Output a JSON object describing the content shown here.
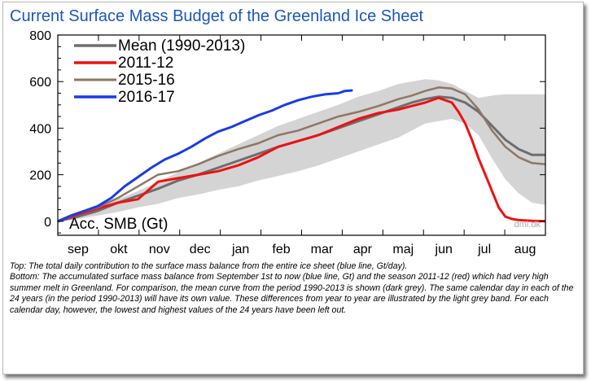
{
  "header": {
    "title": "Current Surface Mass Budget of the Greenland Ice Sheet"
  },
  "caption": {
    "top": "Top: The total daily contribution to the surface mass balance from the entire ice sheet (blue line, Gt/day).",
    "bottom": "Bottom: The accumulated surface mass balance from September 1st to now (blue line, Gt) and the season 2011-12 (red) which had very high summer melt in Greenland. For comparison, the mean curve from the period 1990-2013 is shown (dark grey). The same calendar day in each of the 24 years (in the period 1990-2013) will have its own value. These differences from year to year are illustrated by the light grey band. For each calendar day, however, the lowest and highest values of the 24 years have been left out."
  },
  "chart_data": {
    "type": "line",
    "ylabel": "Acc. SMB (Gt)",
    "source": "dmi.dk",
    "ylim": [
      -60,
      800
    ],
    "xlim": [
      0,
      365
    ],
    "yticks": [
      0,
      200,
      400,
      600,
      800
    ],
    "months": [
      "sep",
      "okt",
      "nov",
      "dec",
      "jan",
      "feb",
      "mar",
      "apr",
      "maj",
      "jun",
      "jul",
      "aug"
    ],
    "legend_position": "top-left",
    "grid": false,
    "band": {
      "color": "#d4d4d4",
      "x": [
        0,
        15,
        30,
        45,
        60,
        75,
        90,
        105,
        120,
        135,
        150,
        165,
        180,
        195,
        210,
        225,
        240,
        255,
        265,
        275,
        285,
        295,
        305,
        315,
        325,
        335,
        345,
        355,
        365
      ],
      "lower": [
        0,
        10,
        25,
        40,
        60,
        75,
        100,
        115,
        135,
        150,
        175,
        195,
        215,
        240,
        270,
        300,
        330,
        360,
        390,
        420,
        430,
        440,
        420,
        370,
        270,
        180,
        120,
        80,
        70
      ],
      "upper": [
        0,
        25,
        60,
        95,
        130,
        170,
        210,
        250,
        290,
        330,
        370,
        410,
        440,
        470,
        500,
        535,
        560,
        590,
        600,
        610,
        605,
        590,
        560,
        530,
        540,
        545,
        545,
        545,
        545
      ]
    },
    "series": [
      {
        "name": "Mean (1990-2013)",
        "color": "#6e6e6e",
        "width": 3,
        "x": [
          0,
          15,
          30,
          45,
          60,
          75,
          90,
          105,
          120,
          135,
          150,
          165,
          180,
          195,
          210,
          225,
          240,
          255,
          265,
          275,
          285,
          295,
          305,
          315,
          325,
          335,
          345,
          355,
          365
        ],
        "values": [
          0,
          20,
          45,
          80,
          110,
          140,
          175,
          200,
          230,
          260,
          290,
          320,
          345,
          370,
          400,
          430,
          460,
          490,
          510,
          525,
          535,
          530,
          510,
          470,
          410,
          350,
          310,
          285,
          285
        ]
      },
      {
        "name": "2011-12",
        "color": "#ee1111",
        "width": 3,
        "x": [
          0,
          15,
          30,
          45,
          60,
          75,
          90,
          105,
          120,
          135,
          150,
          165,
          180,
          195,
          210,
          225,
          240,
          255,
          265,
          275,
          285,
          295,
          300,
          305,
          310,
          315,
          320,
          325,
          330,
          335,
          340,
          345,
          355,
          365
        ],
        "values": [
          0,
          30,
          55,
          80,
          95,
          170,
          185,
          200,
          215,
          240,
          275,
          320,
          345,
          370,
          405,
          440,
          465,
          480,
          495,
          510,
          530,
          510,
          470,
          420,
          350,
          270,
          200,
          130,
          60,
          20,
          10,
          5,
          2,
          0
        ]
      },
      {
        "name": "2015-16",
        "color": "#8e7765",
        "width": 2.5,
        "x": [
          0,
          15,
          30,
          45,
          60,
          75,
          90,
          105,
          120,
          135,
          150,
          165,
          180,
          195,
          210,
          225,
          240,
          255,
          265,
          275,
          285,
          295,
          305,
          315,
          325,
          335,
          345,
          355,
          365
        ],
        "values": [
          0,
          35,
          60,
          100,
          150,
          200,
          215,
          245,
          280,
          310,
          335,
          370,
          390,
          420,
          450,
          470,
          495,
          525,
          540,
          560,
          575,
          570,
          545,
          480,
          390,
          320,
          275,
          250,
          245
        ]
      },
      {
        "name": "2016-17",
        "color": "#1a3ce8",
        "width": 3,
        "x": [
          0,
          10,
          20,
          30,
          40,
          50,
          60,
          70,
          80,
          90,
          100,
          110,
          120,
          130,
          140,
          150,
          160,
          170,
          180,
          190,
          200,
          210,
          215,
          220
        ],
        "values": [
          0,
          25,
          45,
          65,
          100,
          150,
          190,
          230,
          265,
          290,
          320,
          355,
          385,
          405,
          430,
          455,
          475,
          500,
          520,
          535,
          545,
          550,
          560,
          562
        ]
      }
    ]
  },
  "colors": {
    "title": "#1a56c0",
    "band": "#d4d4d4"
  }
}
